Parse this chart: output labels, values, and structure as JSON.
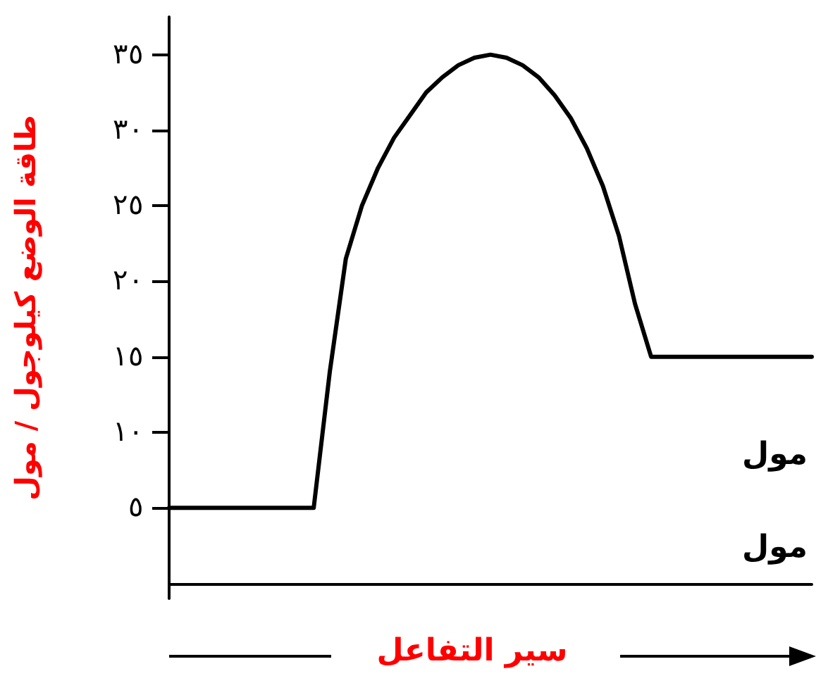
{
  "chart_data": {
    "type": "line",
    "xlabel": "سير التفاعل",
    "ylabel": "طاقة الوضع كيلوجول / مول",
    "categories": [
      null,
      null,
      null,
      null,
      null,
      null,
      null,
      null,
      null,
      null,
      null,
      null,
      null,
      null,
      null,
      null,
      null,
      null,
      null,
      null,
      null,
      null,
      null,
      null,
      null,
      null,
      null,
      null,
      null,
      null,
      null,
      null,
      null,
      null,
      null,
      null,
      null,
      null,
      null,
      null,
      null
    ],
    "series": [
      {
        "color": "#000000",
        "values": [
          5,
          5,
          5,
          5,
          5,
          5,
          5,
          5,
          5,
          5,
          14,
          21.5,
          25,
          27.5,
          29.5,
          31,
          32.5,
          33.5,
          34.3,
          34.8,
          35,
          34.8,
          34.3,
          33.5,
          32.3,
          30.8,
          28.8,
          26.3,
          23,
          18.5,
          15,
          15,
          15,
          15,
          15,
          15,
          15,
          15,
          15,
          15,
          15
        ]
      }
    ],
    "ylim": [
      -1,
      37.5
    ],
    "yticks": [
      {
        "value": 5,
        "label": "٥"
      },
      {
        "value": 10,
        "label": "١٠"
      },
      {
        "value": 15,
        "label": "١٥"
      },
      {
        "value": 20,
        "label": "٢٠"
      },
      {
        "value": 25,
        "label": "٢٥"
      },
      {
        "value": 30,
        "label": "٣٠"
      },
      {
        "value": 35,
        "label": "٣٥"
      }
    ],
    "annotations": [
      "مول",
      "مول"
    ],
    "grid": false,
    "marker": "none",
    "line_style": "solid"
  }
}
